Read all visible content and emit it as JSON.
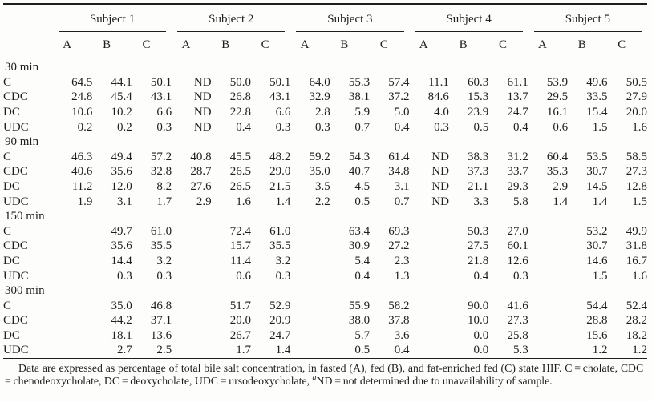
{
  "table": {
    "subjects": [
      "Subject 1",
      "Subject 2",
      "Subject 3",
      "Subject 4",
      "Subject 5"
    ],
    "sub_columns": [
      "A",
      "B",
      "C"
    ],
    "groups": [
      {
        "label": "30 min",
        "rows": [
          {
            "label": "C",
            "values": [
              "64.5",
              "44.1",
              "50.1",
              "ND",
              "50.0",
              "50.1",
              "64.0",
              "55.3",
              "57.4",
              "11.1",
              "60.3",
              "61.1",
              "53.9",
              "49.6",
              "50.5"
            ]
          },
          {
            "label": "CDC",
            "values": [
              "24.8",
              "45.4",
              "43.1",
              "ND",
              "26.8",
              "43.1",
              "32.9",
              "38.1",
              "37.2",
              "84.6",
              "15.3",
              "13.7",
              "29.5",
              "33.5",
              "27.9"
            ]
          },
          {
            "label": "DC",
            "values": [
              "10.6",
              "10.2",
              "6.6",
              "ND",
              "22.8",
              "6.6",
              "2.8",
              "5.9",
              "5.0",
              "4.0",
              "23.9",
              "24.7",
              "16.1",
              "15.4",
              "20.0"
            ]
          },
          {
            "label": "UDC",
            "values": [
              "0.2",
              "0.2",
              "0.3",
              "ND",
              "0.4",
              "0.3",
              "0.3",
              "0.7",
              "0.4",
              "0.3",
              "0.5",
              "0.4",
              "0.6",
              "1.5",
              "1.6"
            ]
          }
        ]
      },
      {
        "label": "90 min",
        "rows": [
          {
            "label": "C",
            "values": [
              "46.3",
              "49.4",
              "57.2",
              "40.8",
              "45.5",
              "48.2",
              "59.2",
              "54.3",
              "61.4",
              "ND",
              "38.3",
              "31.2",
              "60.4",
              "53.5",
              "58.5"
            ]
          },
          {
            "label": "CDC",
            "values": [
              "40.6",
              "35.6",
              "32.8",
              "28.7",
              "26.5",
              "29.0",
              "35.0",
              "40.7",
              "34.8",
              "ND",
              "37.3",
              "33.7",
              "35.3",
              "30.7",
              "27.3"
            ]
          },
          {
            "label": "DC",
            "values": [
              "11.2",
              "12.0",
              "8.2",
              "27.6",
              "26.5",
              "21.5",
              "3.5",
              "4.5",
              "3.1",
              "ND",
              "21.1",
              "29.3",
              "2.9",
              "14.5",
              "12.8"
            ]
          },
          {
            "label": "UDC",
            "values": [
              "1.9",
              "3.1",
              "1.7",
              "2.9",
              "1.6",
              "1.4",
              "2.2",
              "0.5",
              "0.7",
              "ND",
              "3.3",
              "5.8",
              "1.4",
              "1.4",
              "1.5"
            ]
          }
        ]
      },
      {
        "label": "150 min",
        "rows": [
          {
            "label": "C",
            "values": [
              "",
              "49.7",
              "61.0",
              "",
              "72.4",
              "61.0",
              "",
              "63.4",
              "69.3",
              "",
              "50.3",
              "27.0",
              "",
              "53.2",
              "49.9"
            ]
          },
          {
            "label": "CDC",
            "values": [
              "",
              "35.6",
              "35.5",
              "",
              "15.7",
              "35.5",
              "",
              "30.9",
              "27.2",
              "",
              "27.5",
              "60.1",
              "",
              "30.7",
              "31.8"
            ]
          },
          {
            "label": "DC",
            "values": [
              "",
              "14.4",
              "3.2",
              "",
              "11.4",
              "3.2",
              "",
              "5.4",
              "2.3",
              "",
              "21.8",
              "12.6",
              "",
              "14.6",
              "16.7"
            ]
          },
          {
            "label": "UDC",
            "values": [
              "",
              "0.3",
              "0.3",
              "",
              "0.6",
              "0.3",
              "",
              "0.4",
              "1.3",
              "",
              "0.4",
              "0.3",
              "",
              "1.5",
              "1.6"
            ]
          }
        ]
      },
      {
        "label": "300 min",
        "rows": [
          {
            "label": "C",
            "values": [
              "",
              "35.0",
              "46.8",
              "",
              "51.7",
              "52.9",
              "",
              "55.9",
              "58.2",
              "",
              "90.0",
              "41.6",
              "",
              "54.4",
              "52.4"
            ]
          },
          {
            "label": "CDC",
            "values": [
              "",
              "44.2",
              "37.1",
              "",
              "20.0",
              "20.9",
              "",
              "38.0",
              "37.8",
              "",
              "10.0",
              "27.3",
              "",
              "28.8",
              "28.2"
            ]
          },
          {
            "label": "DC",
            "values": [
              "",
              "18.1",
              "13.6",
              "",
              "26.7",
              "24.7",
              "",
              "5.7",
              "3.6",
              "",
              "0.0",
              "25.8",
              "",
              "15.6",
              "18.2"
            ]
          },
          {
            "label": "UDC",
            "values": [
              "",
              "2.7",
              "2.5",
              "",
              "1.7",
              "1.4",
              "",
              "0.5",
              "0.4",
              "",
              "0.0",
              "5.3",
              "",
              "1.2",
              "1.2"
            ]
          }
        ]
      }
    ],
    "footnote": {
      "part1": "Data are expressed as percentage of total bile salt concentration, in fasted (A), fed (B), and fat-enriched fed (C) state HIF. C = cholate, CDC = chenodeoxycholate, DC = deoxycholate, UDC = ursodeoxycholate, ",
      "sup": "a",
      "part2": "ND = not determined due to unavailability of sample."
    },
    "colors": {
      "text": "#1e1e1e",
      "background": "#fdfdfc",
      "rule": "#1e1e1e"
    }
  }
}
